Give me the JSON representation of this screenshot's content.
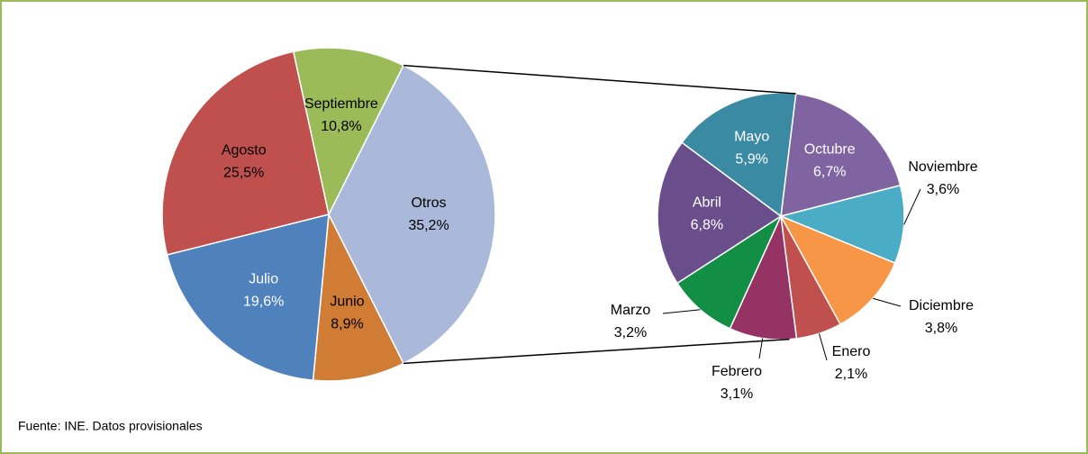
{
  "chart_data": [
    {
      "type": "pie",
      "categories": [
        "Otros",
        "Junio",
        "Julio",
        "Agosto",
        "Septiembre"
      ],
      "values": [
        35.2,
        8.9,
        19.6,
        25.5,
        10.8
      ],
      "value_labels": [
        "35,2%",
        "8,9%",
        "19,6%",
        "25,5%",
        "10,8%"
      ],
      "colors": [
        "#aab9d9",
        "#d07c35",
        "#4f81bd",
        "#c0504d",
        "#9bbb59"
      ]
    },
    {
      "type": "pie",
      "categories": [
        "Octubre",
        "Noviembre",
        "Diciembre",
        "Enero",
        "Febrero",
        "Marzo",
        "Abril",
        "Mayo"
      ],
      "values": [
        6.7,
        3.6,
        3.8,
        2.1,
        3.1,
        3.2,
        6.8,
        5.9
      ],
      "value_labels": [
        "6,7%",
        "3,6%",
        "3,8%",
        "2,1%",
        "3,1%",
        "3,2%",
        "6,8%",
        "5,9%"
      ],
      "colors": [
        "#8064a2",
        "#4bacc6",
        "#f79646",
        "#c0504d",
        "#953365",
        "#138f45",
        "#6a4e8c",
        "#3b8aa3"
      ]
    }
  ],
  "source": "Fuente: INE. Datos provisionales"
}
